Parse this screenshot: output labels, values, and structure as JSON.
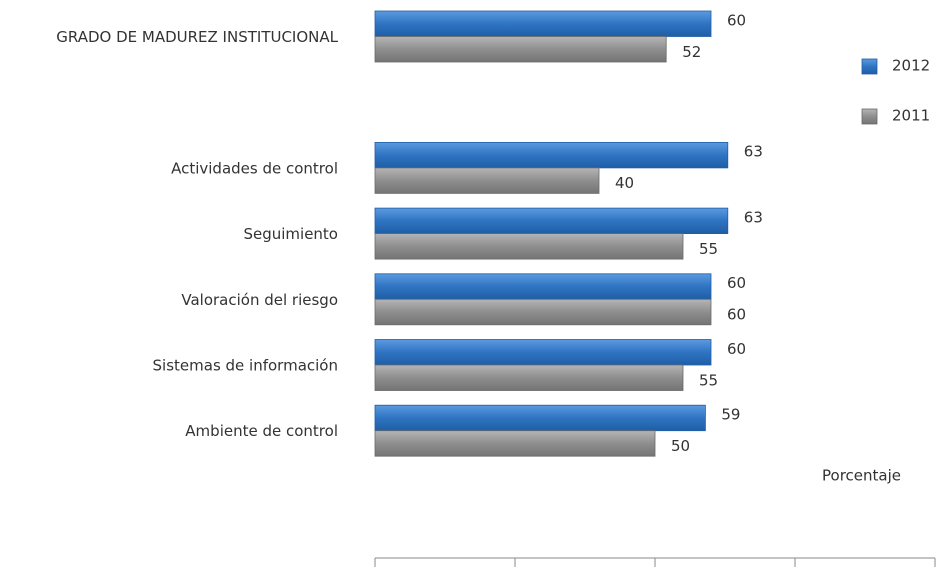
{
  "chart_data": {
    "type": "hbar",
    "categories": [
      "GRADO DE MADUREZ INSTITUCIONAL",
      null,
      "Actividades de control",
      "Seguimiento",
      "Valoración del riesgo",
      "Sistemas de información",
      "Ambiente de control"
    ],
    "series": [
      {
        "name": "2012",
        "color": "#2f74c2",
        "values": [
          60,
          null,
          63,
          63,
          60,
          60,
          59
        ]
      },
      {
        "name": "2011",
        "color": "#8e8e8e",
        "values": [
          52,
          null,
          40,
          55,
          60,
          55,
          50
        ]
      }
    ],
    "xlabel": "Porcentaje",
    "xlim": [
      0,
      100
    ],
    "xticks": [
      0,
      25,
      50,
      75,
      100
    ],
    "legend": "right"
  }
}
